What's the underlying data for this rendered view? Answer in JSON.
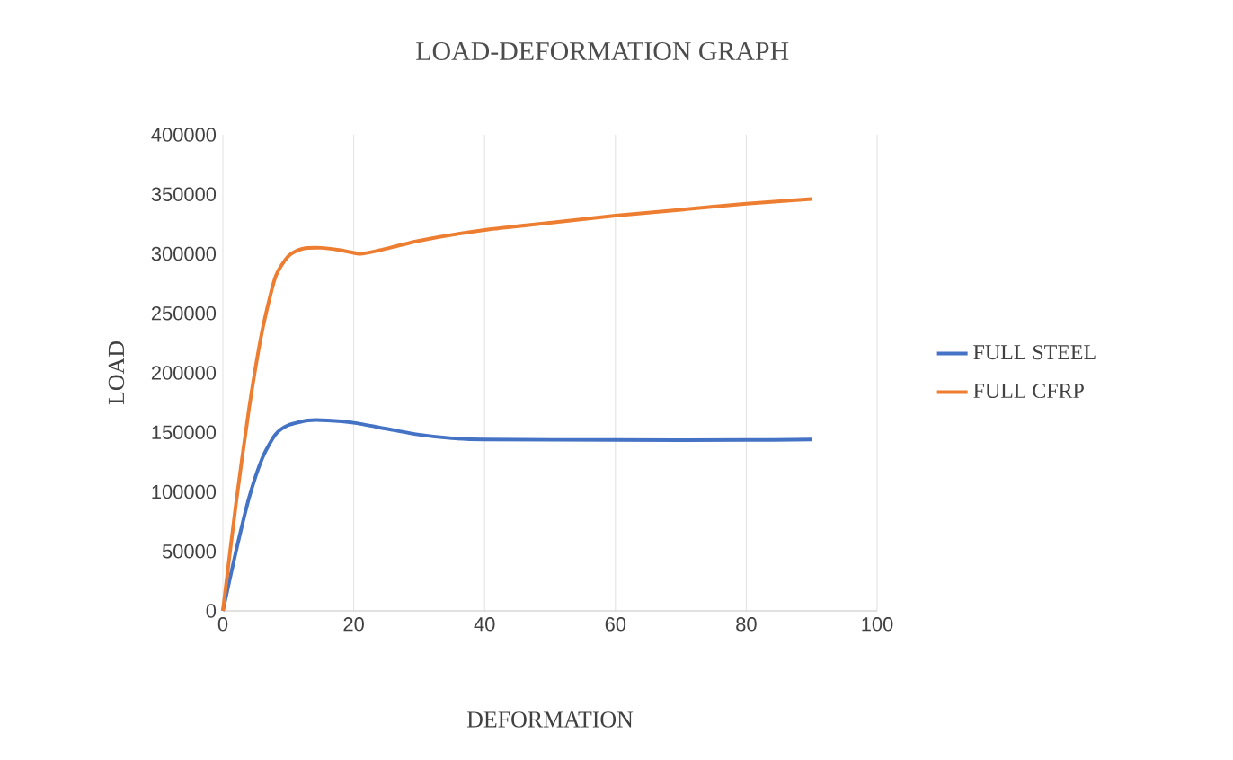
{
  "chart_data": {
    "type": "line",
    "title": "LOAD-DEFORMATION  GRAPH",
    "xlabel": "DEFORMATION",
    "ylabel": "LOAD",
    "xlim": [
      0,
      100
    ],
    "xticks": [
      0,
      20,
      40,
      60,
      80,
      100
    ],
    "ylim": [
      0,
      400000
    ],
    "yticks": [
      0,
      50000,
      100000,
      150000,
      200000,
      250000,
      300000,
      350000,
      400000
    ],
    "grid": "x",
    "legend": "right",
    "marker": "none",
    "line_style": "solid",
    "series": [
      {
        "name": "FULL STEEL",
        "color": "#4472c4",
        "x": [
          0,
          2,
          4,
          6,
          8,
          10,
          13,
          16,
          20,
          25,
          30,
          35,
          40,
          60,
          80,
          90
        ],
        "values": [
          0,
          50000,
          95000,
          128000,
          148000,
          156000,
          160000,
          160000,
          158000,
          153000,
          148000,
          145000,
          144000,
          143500,
          143500,
          144000
        ]
      },
      {
        "name": "FULL CFRP",
        "color": "#ed7d31",
        "x": [
          0,
          2,
          4,
          6,
          8,
          10,
          12,
          15,
          18,
          21,
          24,
          30,
          40,
          50,
          60,
          70,
          80,
          90
        ],
        "values": [
          0,
          90000,
          170000,
          235000,
          280000,
          298000,
          304000,
          305000,
          303000,
          300000,
          303000,
          311000,
          320000,
          326000,
          332000,
          337000,
          342000,
          346000
        ]
      }
    ]
  }
}
